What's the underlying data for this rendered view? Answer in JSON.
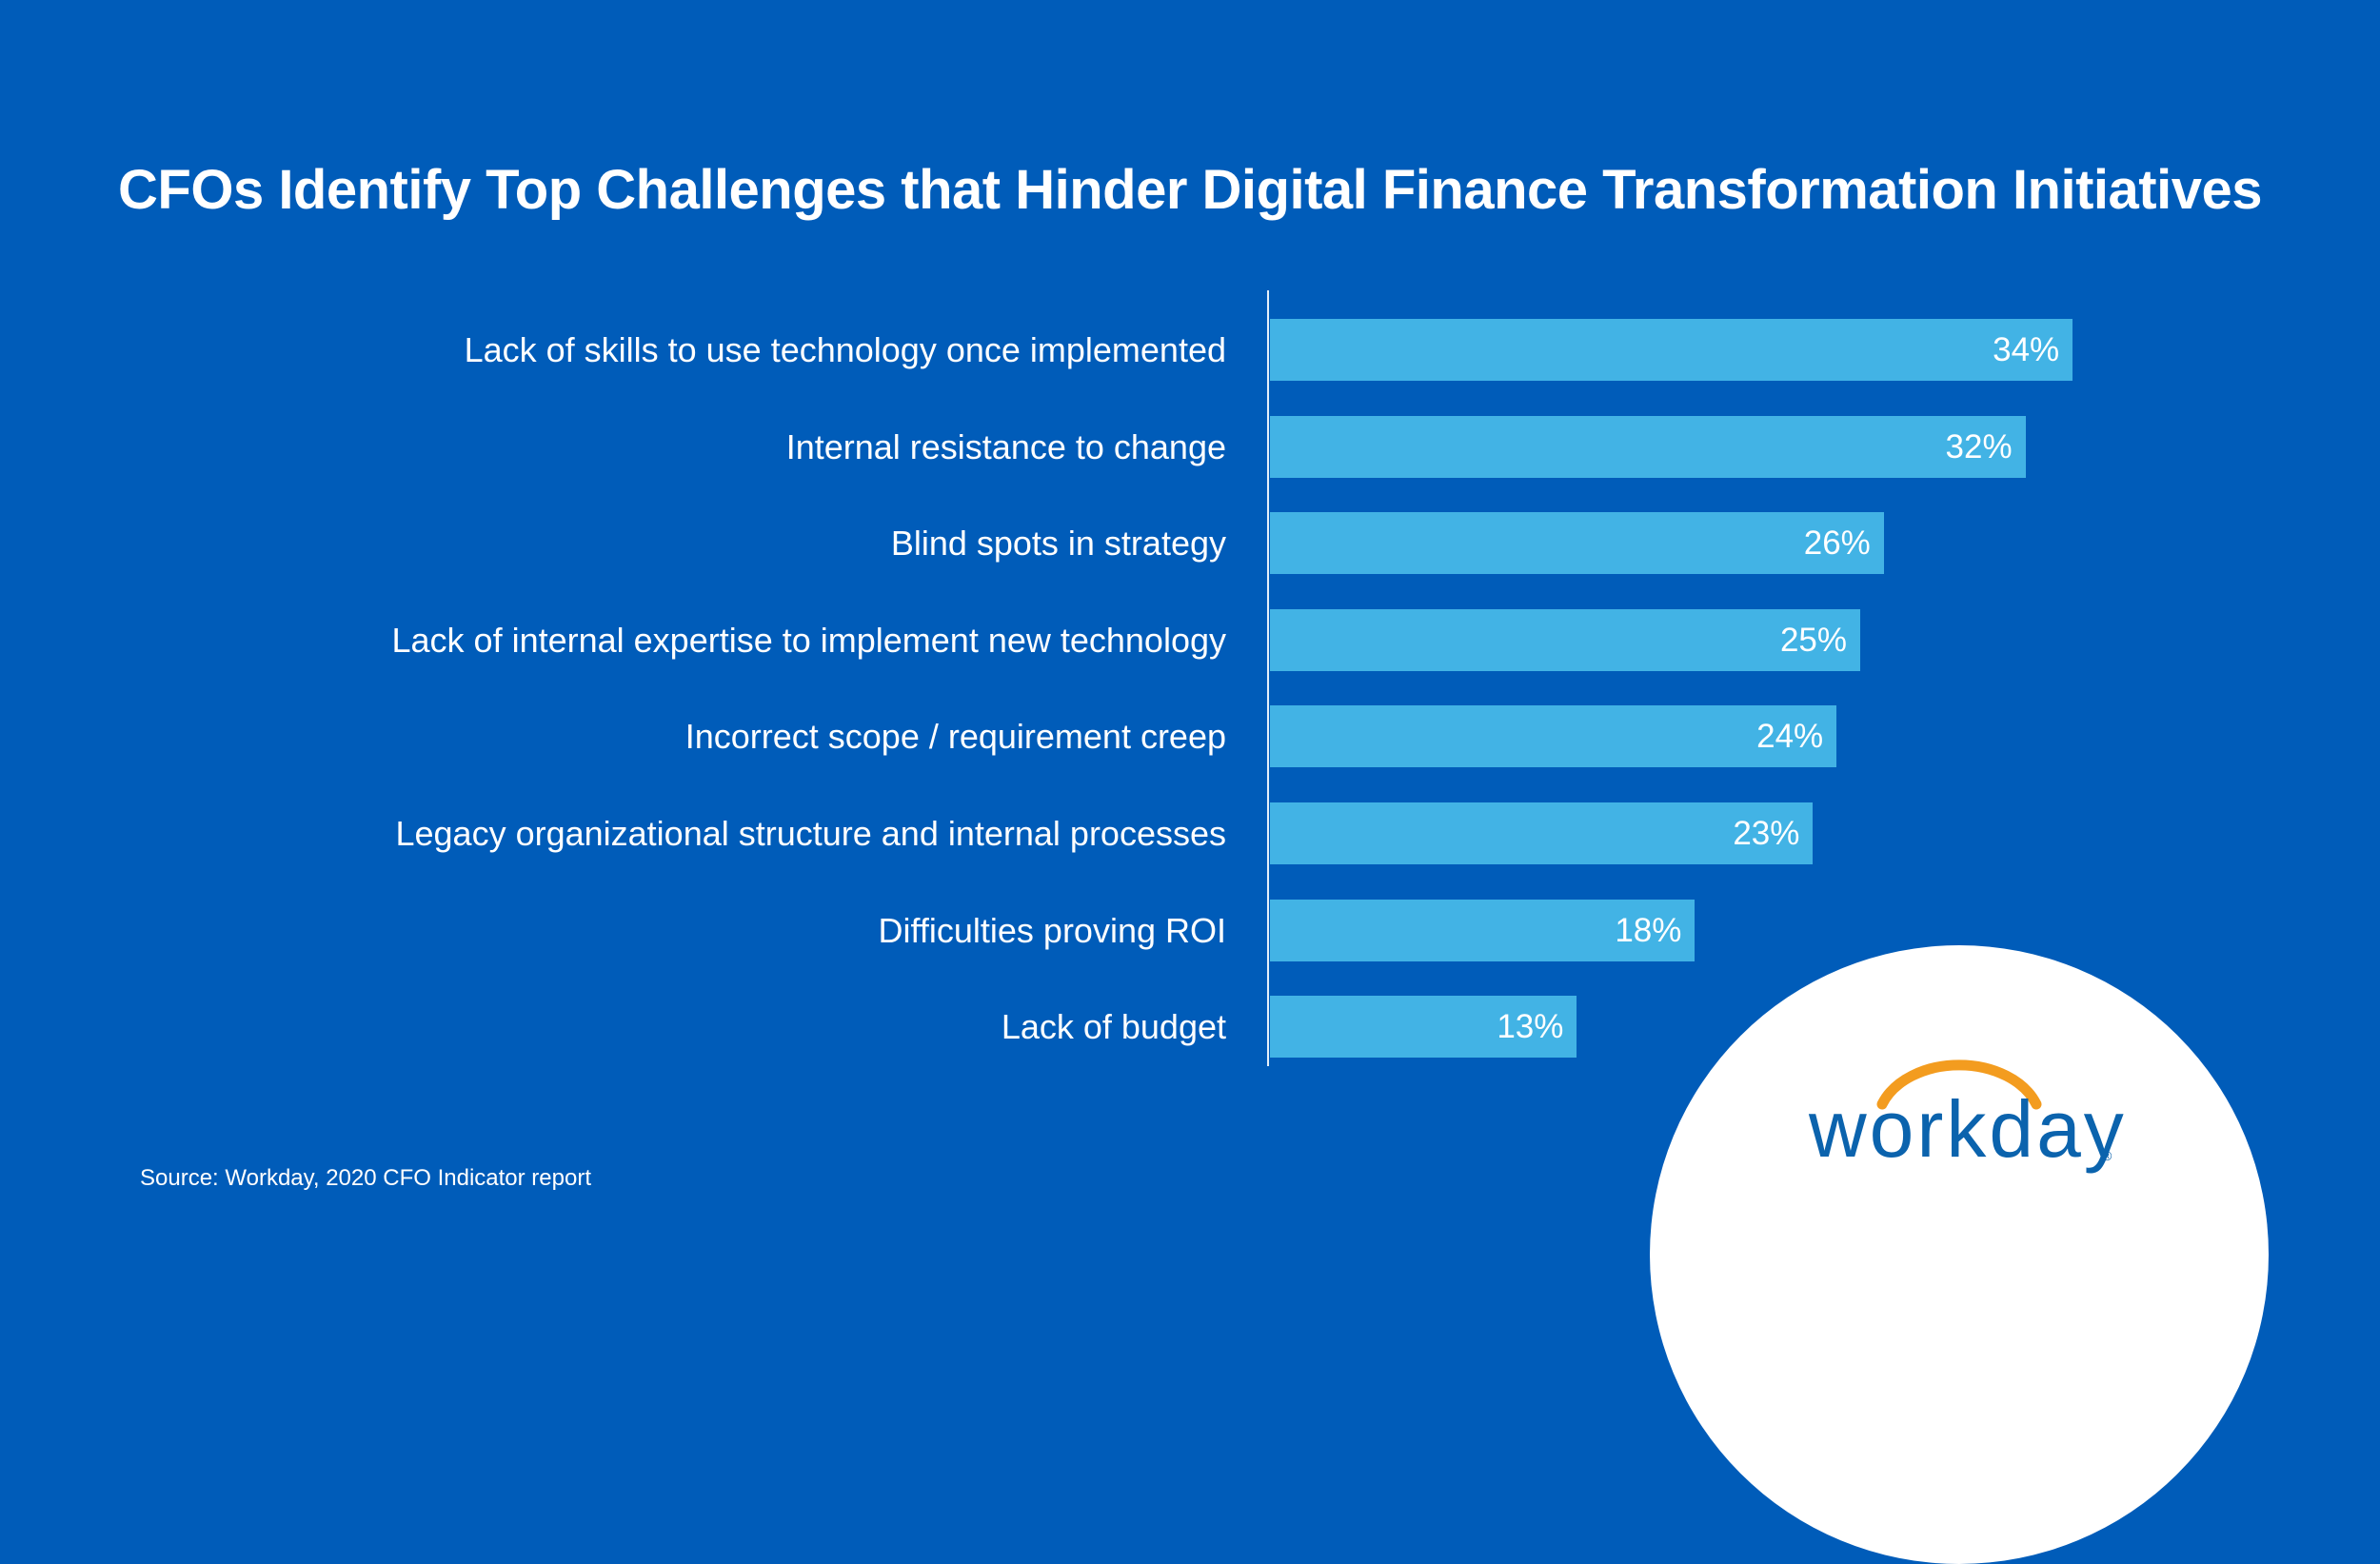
{
  "title": "CFOs Identify Top Challenges that Hinder Digital Finance Transformation Initiatives",
  "source": "Source: Workday, 2020 CFO Indicator report",
  "logo": {
    "wordmark": "workday",
    "registered": "®",
    "arc_color": "#f39c1f",
    "text_color": "#0b63ad"
  },
  "colors": {
    "background": "#005cb9",
    "bar": "#42b3e5",
    "text": "#ffffff",
    "badge": "#ffffff"
  },
  "bars": [
    {
      "label": "Lack of skills to use technology once implemented",
      "value": 34,
      "display": "34%"
    },
    {
      "label": "Internal resistance to change",
      "value": 32,
      "display": "32%"
    },
    {
      "label": "Blind spots in strategy",
      "value": 26,
      "display": "26%"
    },
    {
      "label": "Lack of internal expertise to implement new technology",
      "value": 25,
      "display": "25%"
    },
    {
      "label": "Incorrect scope / requirement creep",
      "value": 24,
      "display": "24%"
    },
    {
      "label": "Legacy organizational structure and internal processes",
      "value": 23,
      "display": "23%"
    },
    {
      "label": "Difficulties proving ROI",
      "value": 18,
      "display": "18%"
    },
    {
      "label": "Lack of budget",
      "value": 13,
      "display": "13%"
    }
  ],
  "chart_data": {
    "type": "bar",
    "orientation": "horizontal",
    "title": "CFOs Identify Top Challenges that Hinder Digital Finance Transformation Initiatives",
    "categories": [
      "Lack of skills to use technology once implemented",
      "Internal resistance to change",
      "Blind spots in strategy",
      "Lack of internal expertise to implement new technology",
      "Incorrect scope / requirement creep",
      "Legacy organizational structure and internal processes",
      "Difficulties proving ROI",
      "Lack of budget"
    ],
    "values": [
      34,
      32,
      26,
      25,
      24,
      23,
      18,
      13
    ],
    "unit": "%",
    "xlabel": "",
    "ylabel": "",
    "grid": false,
    "legend": null,
    "data_labels": true,
    "annotations": [
      "Source: Workday, 2020 CFO Indicator report"
    ]
  }
}
